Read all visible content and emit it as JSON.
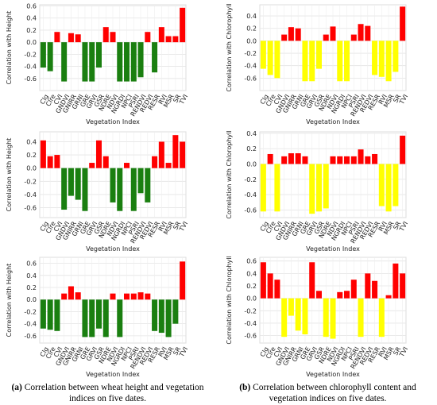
{
  "chart_data": [
    {
      "type": "bar",
      "xlabel": "Vegetation Index",
      "ylabel": "Correlation with Height",
      "categories": [
        "Clg",
        "Clre",
        "CVI",
        "GNDVI",
        "GNIRR",
        "GRNI",
        "GRE",
        "GRVI",
        "GSR",
        "NDRE",
        "NDVI",
        "NGRDI",
        "NPCI",
        "PSRI",
        "RENDVI",
        "REDVI",
        "RESR",
        "RVI",
        "MSR",
        "SR",
        "TVI"
      ],
      "values": [
        -0.42,
        -0.48,
        0.17,
        -0.65,
        0.15,
        0.13,
        -0.65,
        -0.65,
        -0.42,
        0.25,
        0.17,
        -0.65,
        -0.65,
        -0.65,
        -0.58,
        0.17,
        -0.5,
        0.25,
        0.1,
        0.1,
        0.57
      ],
      "positive_color": "#ff0000",
      "negative_color": "#1a7f10",
      "ylim": [
        -0.8,
        0.62
      ],
      "yticks": [
        -0.6,
        -0.4,
        -0.2,
        {
          "value": 0,
          "label": "0.0"
        },
        0.2,
        0.4,
        0.6
      ],
      "grid": true
    },
    {
      "type": "bar",
      "xlabel": "Vegetation Index",
      "ylabel": "Correlation with Chlorophyll",
      "categories": [
        "Clg",
        "Clre",
        "CVI",
        "GNDVI",
        "GNIRR",
        "GRNI",
        "GRE",
        "GRVI",
        "GSR",
        "NDRE",
        "NDVI",
        "NGRDI",
        "NPCI",
        "PSRI",
        "RENDVI",
        "REDVI",
        "RESR",
        "RVI",
        "MSR",
        "SR",
        "TVI"
      ],
      "values": [
        -0.45,
        -0.55,
        -0.6,
        0.1,
        0.22,
        0.2,
        -0.65,
        -0.65,
        -0.45,
        0.1,
        0.23,
        -0.65,
        -0.65,
        0.1,
        0.27,
        0.24,
        -0.55,
        -0.58,
        -0.65,
        -0.5,
        0.55
      ],
      "positive_color": "#ff0000",
      "negative_color": "#ffff00",
      "ylim": [
        -0.8,
        0.58
      ],
      "yticks": [
        -0.6,
        -0.4,
        -0.2,
        {
          "value": 0,
          "label": "0.0"
        },
        0.2,
        0.4
      ],
      "grid": true
    },
    {
      "type": "bar",
      "xlabel": "Vegetation Index",
      "ylabel": "Correlation with Height",
      "categories": [
        "Clg",
        "Clre",
        "CVI",
        "GNDVI",
        "GNIRR",
        "GRNI",
        "GRE",
        "GRVI",
        "GSR",
        "NDRE",
        "NDVI",
        "NGRDI",
        "NPCI",
        "PSRI",
        "RENDVI",
        "REDVI",
        "RESR",
        "RVI",
        "MSR",
        "SR",
        "TVI"
      ],
      "values": [
        0.42,
        0.18,
        0.2,
        -0.63,
        -0.42,
        -0.48,
        -0.65,
        0.08,
        0.42,
        0.18,
        -0.52,
        -0.65,
        0.08,
        -0.65,
        -0.38,
        -0.52,
        0.18,
        0.4,
        0.08,
        0.5,
        0.4
      ],
      "positive_color": "#ff0000",
      "negative_color": "#1a7f10",
      "ylim": [
        -0.75,
        0.55
      ],
      "yticks": [
        -0.6,
        -0.4,
        -0.2,
        {
          "value": 0,
          "label": "0.0"
        },
        0.2,
        0.4
      ],
      "grid": true
    },
    {
      "type": "bar",
      "xlabel": "Vegetation Index",
      "ylabel": "Correlation with Chlorophyll",
      "categories": [
        "Clg",
        "Clre",
        "CVI",
        "GNDVI",
        "GNIRR",
        "GRNI",
        "GRE",
        "GRVI",
        "GSR",
        "NDRE",
        "NDVI",
        "NGRDI",
        "NPCI",
        "PSRI",
        "RENDVI",
        "REDVI",
        "RESR",
        "RVI",
        "MSR",
        "SR",
        "TVI"
      ],
      "values": [
        -0.62,
        0.13,
        -0.62,
        0.1,
        0.14,
        0.14,
        0.1,
        -0.65,
        -0.62,
        -0.58,
        0.1,
        0.1,
        0.1,
        0.1,
        0.19,
        0.1,
        0.13,
        -0.55,
        -0.62,
        -0.55,
        0.37
      ],
      "positive_color": "#ff0000",
      "negative_color": "#ffff00",
      "ylim": [
        -0.7,
        0.42
      ],
      "yticks": [
        -0.6,
        -0.4,
        -0.2,
        {
          "value": 0,
          "label": "0.0"
        },
        0.2,
        0.4
      ],
      "grid": true
    },
    {
      "type": "bar",
      "xlabel": "Vegetation Index",
      "ylabel": "Correlation with Height",
      "categories": [
        "Clg",
        "Clre",
        "CVI",
        "GNDVI",
        "GNIRR",
        "GRNI",
        "GRE",
        "GRVI",
        "GSR",
        "NDRE",
        "NDVI",
        "NGRDI",
        "NPCI",
        "PSRI",
        "RENDVI",
        "REDVI",
        "RESR",
        "RVI",
        "MSR",
        "SR",
        "TVI"
      ],
      "values": [
        -0.48,
        -0.5,
        -0.52,
        0.1,
        0.22,
        0.12,
        -0.62,
        -0.62,
        -0.48,
        -0.62,
        0.1,
        -0.62,
        0.1,
        0.1,
        0.12,
        0.1,
        -0.52,
        -0.55,
        -0.62,
        -0.4,
        0.63
      ],
      "positive_color": "#ff0000",
      "negative_color": "#1a7f10",
      "ylim": [
        -0.72,
        0.7
      ],
      "yticks": [
        -0.6,
        -0.4,
        -0.2,
        {
          "value": 0,
          "label": "0.0"
        },
        0.2,
        0.4,
        0.6
      ],
      "grid": true
    },
    {
      "type": "bar",
      "xlabel": "Vegetation Index",
      "ylabel": "Correlation with Chlorophyll",
      "categories": [
        "Clg",
        "Clre",
        "CVI",
        "GNDVI",
        "GNIRR",
        "GRNI",
        "GRE",
        "GRVI",
        "GSR",
        "NDRE",
        "NDVI",
        "NGRDI",
        "NPCI",
        "PSRI",
        "RENDVI",
        "REDVI",
        "RESR",
        "RVI",
        "MSR",
        "SR",
        "TVI"
      ],
      "values": [
        0.58,
        0.4,
        0.3,
        -0.62,
        -0.28,
        -0.52,
        -0.58,
        0.58,
        0.12,
        -0.62,
        -0.65,
        0.1,
        0.12,
        0.3,
        -0.62,
        0.4,
        0.28,
        -0.62,
        0.05,
        0.56,
        0.4
      ],
      "positive_color": "#ff0000",
      "negative_color": "#ffff00",
      "ylim": [
        -0.72,
        0.66
      ],
      "yticks": [
        -0.6,
        -0.4,
        -0.2,
        {
          "value": 0,
          "label": "0.0"
        },
        0.2,
        0.4,
        0.6
      ],
      "grid": true
    }
  ],
  "captions": [
    {
      "label": "(a)",
      "text": "Correlation between wheat height and vegetation indices on five dates."
    },
    {
      "label": "(b)",
      "text": "Correlation between chlorophyll content and vegetation indices on five dates."
    }
  ]
}
